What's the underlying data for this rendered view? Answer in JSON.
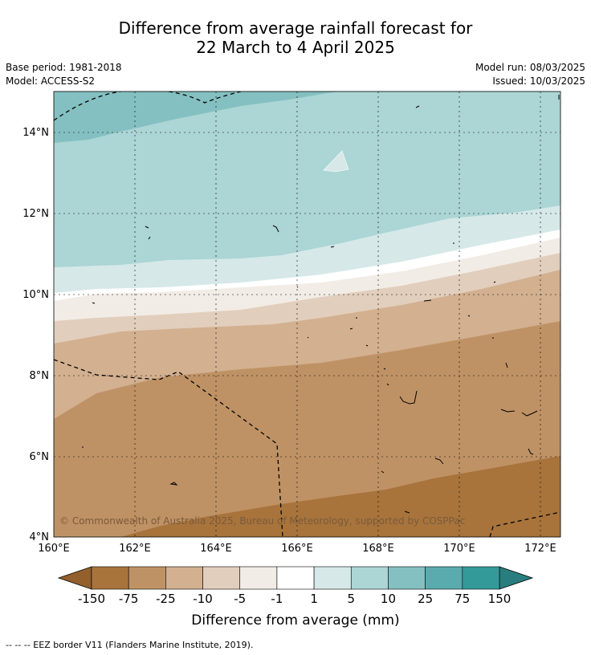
{
  "title_line1": "Difference from average rainfall forecast for",
  "title_line2": "22 March to 4 April 2025",
  "base_period": "Base period: 1981-2018",
  "model": "Model: ACCESS-S2",
  "model_run": "Model run: 08/03/2025",
  "issued": "Issued: 10/03/2025",
  "copyright": "© Commonwealth of Australia 2025, Bureau of Meteorology, supported by COSPPac",
  "footnote": "--  --  -- EEZ border V11 (Flanders Marine Institute, 2019).",
  "map": {
    "lon_range": [
      160,
      172.5
    ],
    "lat_range": [
      4,
      15
    ],
    "lon_ticks": [
      "160°E",
      "162°E",
      "164°E",
      "166°E",
      "168°E",
      "170°E",
      "172°E"
    ],
    "lat_ticks": [
      "4°N",
      "6°N",
      "8°N",
      "10°N",
      "12°N",
      "14°N"
    ]
  },
  "colorbar": {
    "title": "Difference from average (mm)",
    "labels": [
      "-150",
      "-75",
      "-25",
      "-10",
      "-5",
      "-1",
      "1",
      "5",
      "10",
      "25",
      "75",
      "150"
    ],
    "colors": [
      "#a8743c",
      "#bf9265",
      "#d2b090",
      "#e2cebc",
      "#f2ece6",
      "#ffffff",
      "#d6e8e8",
      "#acd5d5",
      "#84c0c1",
      "#5aabae",
      "#339a99"
    ],
    "under_color": "#925f2d",
    "over_color": "#287e7e"
  }
}
